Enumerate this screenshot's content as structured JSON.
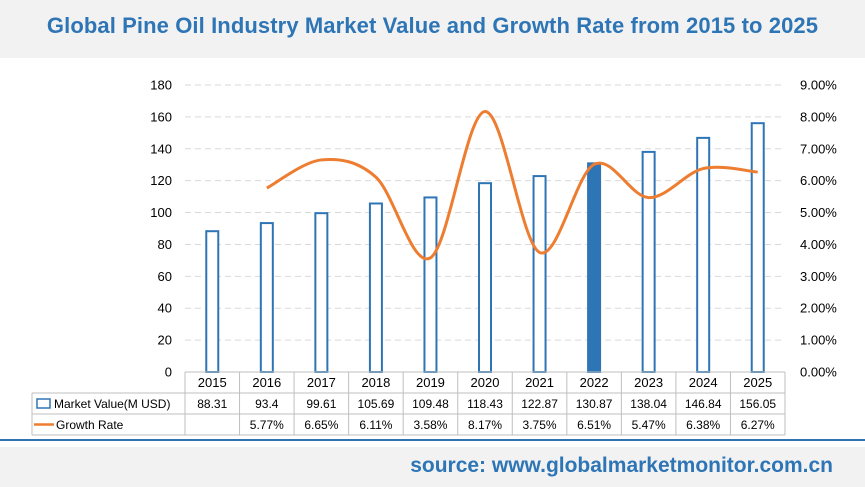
{
  "title": "Global Pine Oil Industry Market Value and Growth Rate from 2015 to 2025",
  "source": "source: www.globalmarketmonitor.com.cn",
  "colors": {
    "title": "#2e75b6",
    "bar_stroke": "#2e75b6",
    "bar_fill": "#ffffff",
    "highlight_fill": "#2e75b6",
    "line": "#ed7d31",
    "grid": "#d9d9d9"
  },
  "chart_data": {
    "type": "bar",
    "categories": [
      "2015",
      "2016",
      "2017",
      "2018",
      "2019",
      "2020",
      "2021",
      "2022",
      "2023",
      "2024",
      "2025"
    ],
    "series": [
      {
        "name": "Market Value(M USD)",
        "type": "bar",
        "axis": "left",
        "values": [
          88.31,
          93.4,
          99.61,
          105.69,
          109.48,
          118.43,
          122.87,
          130.87,
          138.04,
          146.84,
          156.05
        ],
        "labels": [
          "88.31",
          "93.4",
          "99.61",
          "105.69",
          "109.48",
          "118.43",
          "122.87",
          "130.87",
          "138.04",
          "146.84",
          "156.05"
        ],
        "highlight_category": "2022"
      },
      {
        "name": "Growth Rate",
        "type": "line",
        "axis": "right",
        "smooth": true,
        "values": [
          null,
          5.77,
          6.65,
          6.11,
          3.58,
          8.17,
          3.75,
          6.51,
          5.47,
          6.38,
          6.27
        ],
        "labels": [
          "",
          "5.77%",
          "6.65%",
          "6.11%",
          "3.58%",
          "8.17%",
          "3.75%",
          "6.51%",
          "5.47%",
          "6.38%",
          "6.27%"
        ]
      }
    ],
    "y_left": {
      "min": 0,
      "max": 180,
      "ticks": [
        "0",
        "20",
        "40",
        "60",
        "80",
        "100",
        "120",
        "140",
        "160",
        "180"
      ]
    },
    "y_right": {
      "min": 0,
      "max": 9,
      "ticks": [
        "0.00%",
        "1.00%",
        "2.00%",
        "3.00%",
        "4.00%",
        "5.00%",
        "6.00%",
        "7.00%",
        "8.00%",
        "9.00%"
      ]
    },
    "grid": true,
    "legend": "data-table"
  }
}
